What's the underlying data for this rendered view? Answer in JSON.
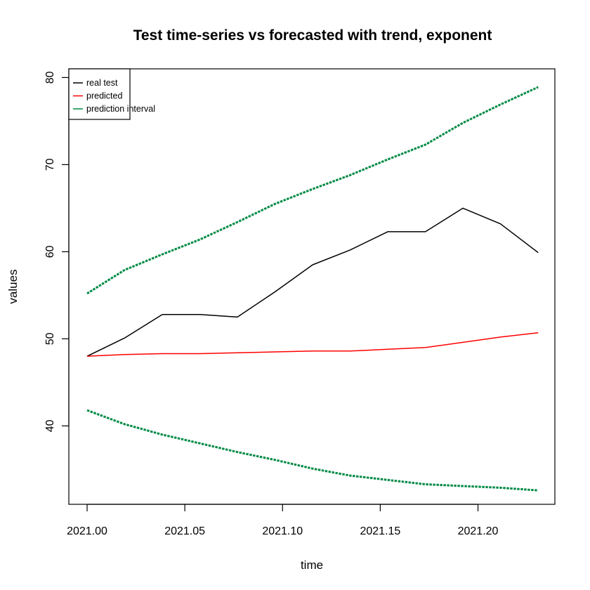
{
  "chart_data": {
    "type": "line",
    "title": "Test time-series vs forecasted with trend, exponent",
    "xlabel": "time",
    "ylabel": "values",
    "xlim": [
      2021.0,
      2021.23
    ],
    "ylim": [
      31,
      81
    ],
    "xticks": [
      "2021.00",
      "2021.05",
      "2021.10",
      "2021.15",
      "2021.20"
    ],
    "yticks": [
      "40",
      "50",
      "60",
      "70",
      "80"
    ],
    "grid": false,
    "legend_position": "top-left",
    "x": [
      2021.0,
      2021.0192,
      2021.0385,
      2021.0577,
      2021.0769,
      2021.0962,
      2021.1154,
      2021.1346,
      2021.1538,
      2021.1731,
      2021.1923,
      2021.2115,
      2021.2308
    ],
    "series": [
      {
        "name": "real test",
        "color": "#000000",
        "style": "solid",
        "values": [
          48.0,
          50.1,
          52.8,
          52.8,
          52.5,
          55.4,
          58.5,
          60.2,
          62.3,
          62.3,
          65.0,
          63.2,
          59.9
        ]
      },
      {
        "name": "predicted",
        "color": "#ff0000",
        "style": "solid",
        "values": [
          48.0,
          48.2,
          48.3,
          48.3,
          48.4,
          48.5,
          48.6,
          48.6,
          48.8,
          49.0,
          49.6,
          50.2,
          50.7
        ]
      },
      {
        "name": "prediction interval",
        "color": "#008a45",
        "style": "dashed",
        "values": [
          55.2,
          57.9,
          59.7,
          61.4,
          63.4,
          65.5,
          67.2,
          68.8,
          70.6,
          72.3,
          74.8,
          76.9,
          78.9
        ]
      },
      {
        "name": "",
        "color": "#008a45",
        "style": "dashed",
        "values": [
          41.8,
          40.2,
          39.0,
          38.0,
          37.0,
          36.1,
          35.1,
          34.3,
          33.8,
          33.3,
          33.1,
          32.9,
          32.6
        ]
      }
    ]
  }
}
